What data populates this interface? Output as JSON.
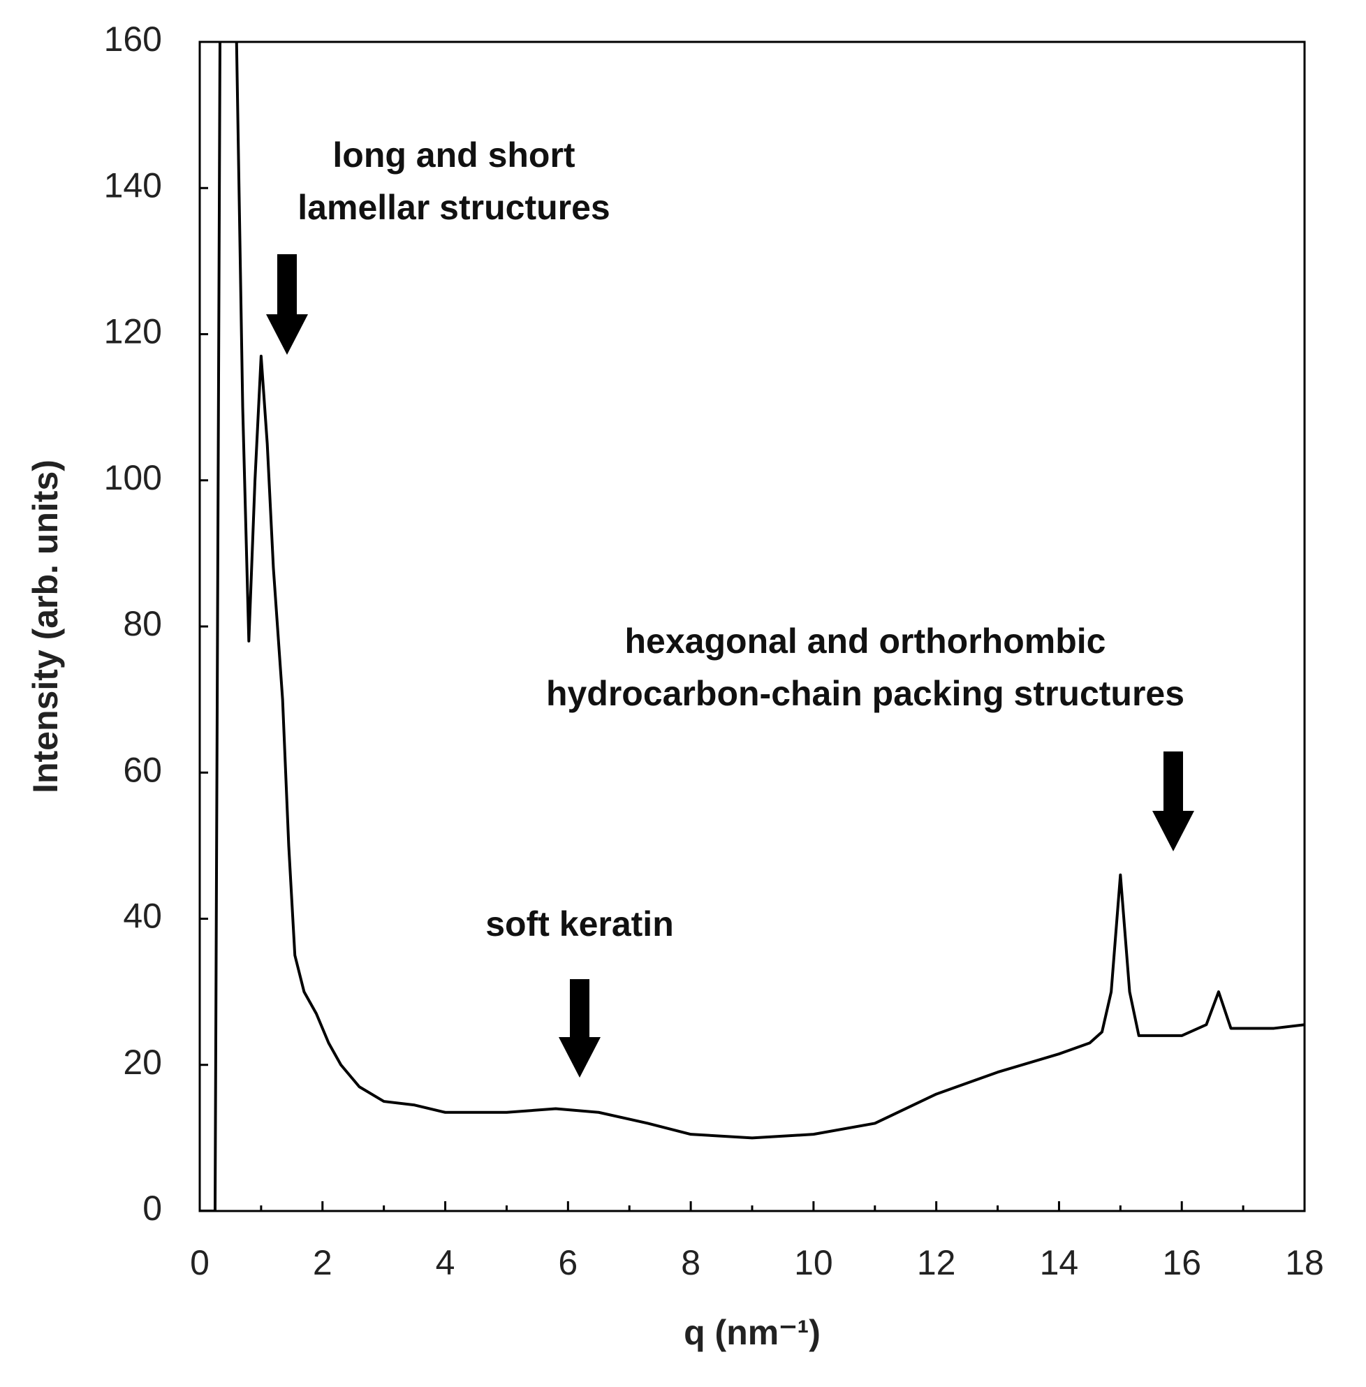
{
  "chart_data": {
    "type": "line",
    "xlabel": "q (nm⁻¹)",
    "ylabel": "Intensity (arb. units)",
    "annotations": [
      "long and short",
      "lamellar structures",
      "soft keratin",
      "hexagonal and orthorhombic",
      "hydrocarbon-chain packing structures"
    ],
    "x": [
      0,
      0.25,
      0.33,
      0.45,
      0.6,
      0.7,
      0.8,
      0.9,
      1.0,
      1.1,
      1.2,
      1.35,
      1.45,
      1.55,
      1.7,
      1.9,
      2.1,
      2.3,
      2.6,
      3.0,
      3.5,
      4.0,
      5.0,
      5.8,
      6.5,
      7.3,
      8.0,
      9.0,
      10.0,
      11.0,
      12.0,
      13.0,
      14.0,
      14.5,
      14.7,
      14.85,
      15.0,
      15.15,
      15.3,
      16.0,
      16.4,
      16.6,
      16.8,
      17.5,
      18.0
    ],
    "series": [
      {
        "color": "#000000",
        "values": [
          0,
          0,
          160,
          null,
          160,
          110,
          78,
          100,
          117,
          105,
          88,
          70,
          50,
          35,
          30,
          27,
          23,
          20,
          17,
          15,
          14.5,
          13.5,
          13.5,
          14,
          13.5,
          12,
          10.5,
          10,
          10.5,
          12,
          16,
          19,
          21.5,
          23,
          24.5,
          30,
          46,
          30,
          24,
          24,
          25.5,
          30,
          25,
          25,
          25.5
        ]
      }
    ],
    "xlim": [
      0,
      18
    ],
    "xticks": [
      0,
      2,
      4,
      6,
      8,
      10,
      12,
      14,
      16,
      18
    ],
    "xminor_ticks": [
      1,
      3,
      5,
      7,
      9,
      11,
      13,
      15,
      17
    ],
    "ylim": [
      0,
      160
    ],
    "yticks": [
      0,
      20,
      40,
      60,
      80,
      100,
      120,
      140,
      160
    ],
    "grid": false
  }
}
